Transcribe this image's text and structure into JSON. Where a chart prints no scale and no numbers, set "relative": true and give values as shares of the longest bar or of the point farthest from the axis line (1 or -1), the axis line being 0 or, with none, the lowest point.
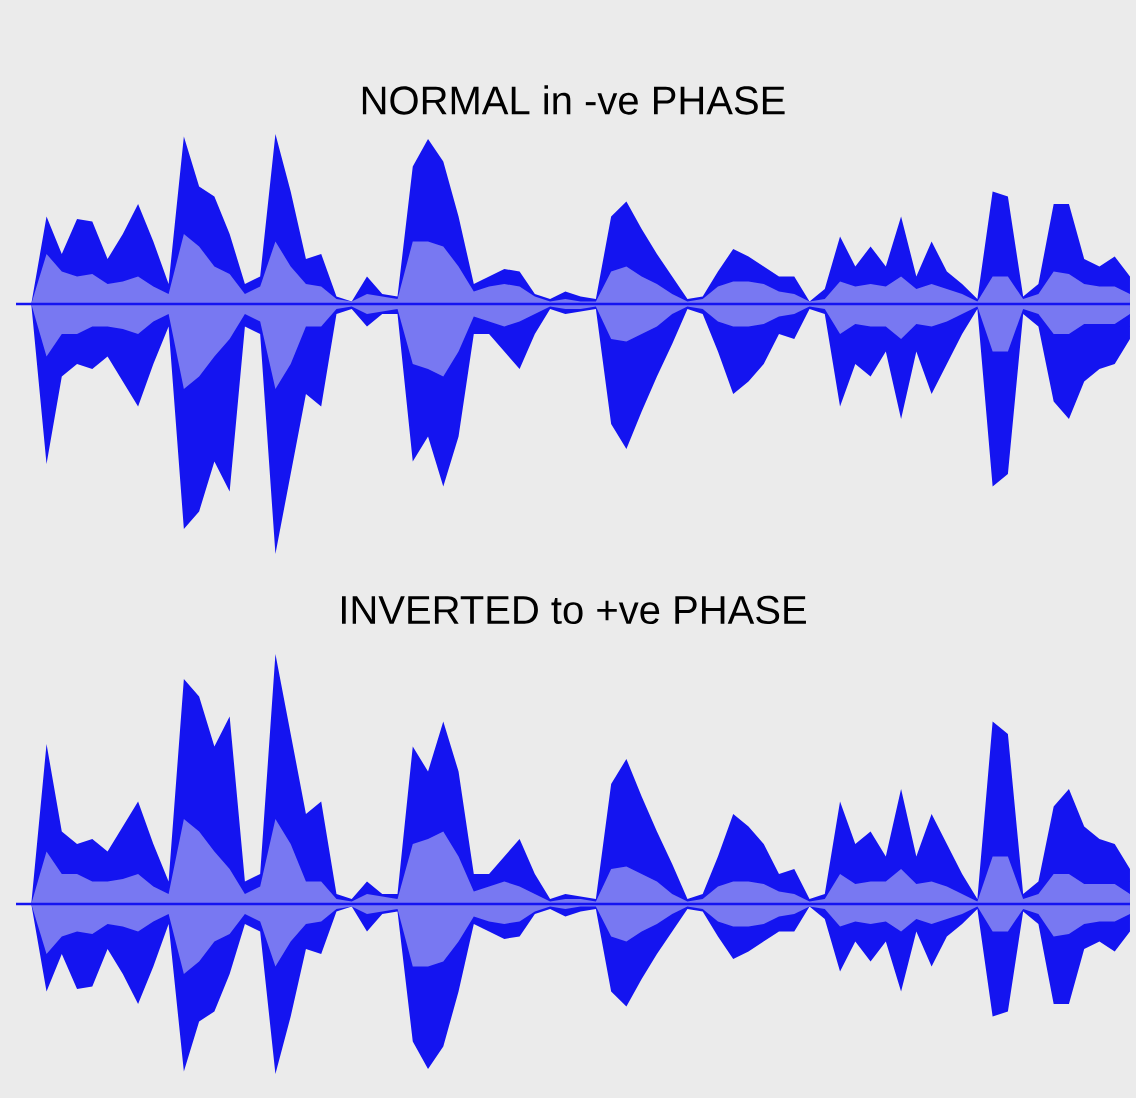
{
  "chart_data": [
    {
      "type": "area",
      "relative": true,
      "title": "NORMAL in -ve PHASE",
      "ref_lines": [
        {
          "axis": "y",
          "value": 0,
          "color": "#1414f0"
        }
      ],
      "categories": [
        null,
        null,
        null,
        null,
        null,
        null,
        null,
        null,
        null,
        null,
        null,
        null,
        null,
        null,
        null,
        null,
        null,
        null,
        null,
        null,
        null,
        null,
        null,
        null,
        null,
        null,
        null,
        null,
        null,
        null,
        null,
        null,
        null,
        null,
        null,
        null,
        null,
        null,
        null,
        null,
        null,
        null,
        null,
        null,
        null,
        null,
        null,
        null,
        null,
        null,
        null,
        null,
        null,
        null,
        null,
        null,
        null,
        null,
        null,
        null,
        null,
        null,
        null,
        null,
        null,
        null,
        null,
        null,
        null,
        null,
        null,
        null,
        null,
        null
      ],
      "series": [
        {
          "color": "#1414f0",
          "values": [
            0,
            0,
            0.35,
            0.2,
            0.34,
            0.33,
            0.18,
            0.28,
            0.4,
            0.25,
            0.08,
            0.67,
            0.47,
            0.43,
            0.28,
            0.08,
            0.11,
            0.68,
            0.45,
            0.18,
            0.2,
            0.03,
            0.01,
            0.11,
            0.04,
            0.03,
            0.55,
            0.66,
            0.57,
            0.35,
            0.08,
            0.11,
            0.14,
            0.13,
            0.04,
            0.02,
            0.05,
            0.03,
            0.02,
            0.35,
            0.41,
            0.3,
            0.2,
            0.11,
            0.02,
            0.03,
            0.13,
            0.22,
            0.19,
            0.15,
            0.11,
            0.11,
            0.01,
            0.06,
            0.27,
            0.15,
            0.23,
            0.15,
            0.35,
            0.11,
            0.25,
            0.13,
            0.08,
            0.02,
            0.45,
            0.43,
            0.03,
            0.08,
            0.4,
            0.4,
            0.18,
            0.15,
            0.19,
            0.11
          ]
        },
        {
          "color": "#1414f0",
          "values": [
            0,
            0,
            -0.64,
            -0.29,
            -0.24,
            -0.26,
            -0.21,
            -0.31,
            -0.41,
            -0.24,
            -0.09,
            -0.9,
            -0.83,
            -0.63,
            -0.75,
            -0.09,
            -0.12,
            -1,
            -0.68,
            -0.36,
            -0.41,
            -0.04,
            -0.02,
            -0.09,
            -0.04,
            -0.04,
            -0.63,
            -0.53,
            -0.73,
            -0.53,
            -0.12,
            -0.12,
            -0.19,
            -0.26,
            -0.12,
            -0.02,
            -0.04,
            -0.03,
            -0.02,
            -0.48,
            -0.58,
            -0.43,
            -0.29,
            -0.16,
            -0.02,
            -0.04,
            -0.19,
            -0.36,
            -0.31,
            -0.24,
            -0.12,
            -0.14,
            -0.02,
            -0.04,
            -0.41,
            -0.24,
            -0.29,
            -0.19,
            -0.46,
            -0.19,
            -0.36,
            -0.24,
            -0.12,
            -0.02,
            -0.73,
            -0.68,
            -0.04,
            -0.09,
            -0.39,
            -0.46,
            -0.31,
            -0.26,
            -0.24,
            -0.14
          ]
        },
        {
          "color": "#7878f2",
          "values": [
            0,
            0,
            0.2,
            0.13,
            0.11,
            0.12,
            0.08,
            0.09,
            0.11,
            0.07,
            0.04,
            0.28,
            0.23,
            0.15,
            0.12,
            0.04,
            0.07,
            0.25,
            0.15,
            0.08,
            0.07,
            0.02,
            0.01,
            0.04,
            0.03,
            0.02,
            0.25,
            0.25,
            0.23,
            0.15,
            0.05,
            0.07,
            0.08,
            0.07,
            0.03,
            0.01,
            0.02,
            0.01,
            0.01,
            0.13,
            0.15,
            0.11,
            0.08,
            0.04,
            0.01,
            0.02,
            0.07,
            0.09,
            0.09,
            0.08,
            0.05,
            0.04,
            0.01,
            0.02,
            0.09,
            0.07,
            0.08,
            0.07,
            0.11,
            0.06,
            0.08,
            0.06,
            0.04,
            0.01,
            0.11,
            0.11,
            0.02,
            0.04,
            0.13,
            0.12,
            0.08,
            0.07,
            0.07,
            0.04
          ]
        },
        {
          "color": "#7878f2",
          "values": [
            0,
            0,
            -0.21,
            -0.12,
            -0.12,
            -0.09,
            -0.09,
            -0.1,
            -0.12,
            -0.07,
            -0.04,
            -0.34,
            -0.29,
            -0.21,
            -0.14,
            -0.04,
            -0.07,
            -0.34,
            -0.24,
            -0.09,
            -0.09,
            -0.02,
            -0.01,
            -0.04,
            -0.03,
            -0.02,
            -0.24,
            -0.26,
            -0.29,
            -0.19,
            -0.05,
            -0.07,
            -0.09,
            -0.07,
            -0.04,
            -0.01,
            -0.02,
            -0.02,
            -0.01,
            -0.14,
            -0.15,
            -0.12,
            -0.09,
            -0.04,
            -0.01,
            -0.02,
            -0.07,
            -0.09,
            -0.09,
            -0.08,
            -0.05,
            -0.04,
            -0.01,
            -0.02,
            -0.12,
            -0.08,
            -0.09,
            -0.09,
            -0.14,
            -0.08,
            -0.09,
            -0.07,
            -0.04,
            -0.01,
            -0.19,
            -0.19,
            -0.02,
            -0.04,
            -0.12,
            -0.12,
            -0.08,
            -0.08,
            -0.08,
            -0.04
          ]
        }
      ]
    },
    {
      "type": "area",
      "relative": true,
      "title": "INVERTED to +ve PHASE",
      "ref_lines": [
        {
          "axis": "y",
          "value": 0,
          "color": "#1414f0"
        }
      ],
      "categories": [
        null,
        null,
        null,
        null,
        null,
        null,
        null,
        null,
        null,
        null,
        null,
        null,
        null,
        null,
        null,
        null,
        null,
        null,
        null,
        null,
        null,
        null,
        null,
        null,
        null,
        null,
        null,
        null,
        null,
        null,
        null,
        null,
        null,
        null,
        null,
        null,
        null,
        null,
        null,
        null,
        null,
        null,
        null,
        null,
        null,
        null,
        null,
        null,
        null,
        null,
        null,
        null,
        null,
        null,
        null,
        null,
        null,
        null,
        null,
        null,
        null,
        null,
        null,
        null,
        null,
        null,
        null,
        null,
        null,
        null,
        null,
        null,
        null,
        null
      ],
      "series": [
        {
          "color": "#1414f0",
          "values": [
            0,
            0,
            0.64,
            0.29,
            0.24,
            0.26,
            0.21,
            0.31,
            0.41,
            0.24,
            0.09,
            0.9,
            0.83,
            0.63,
            0.75,
            0.09,
            0.12,
            1,
            0.68,
            0.36,
            0.41,
            0.04,
            0.02,
            0.09,
            0.04,
            0.04,
            0.63,
            0.53,
            0.73,
            0.53,
            0.12,
            0.12,
            0.19,
            0.26,
            0.12,
            0.02,
            0.04,
            0.03,
            0.02,
            0.48,
            0.58,
            0.43,
            0.29,
            0.16,
            0.02,
            0.04,
            0.19,
            0.36,
            0.31,
            0.24,
            0.12,
            0.14,
            0.02,
            0.04,
            0.41,
            0.24,
            0.29,
            0.19,
            0.46,
            0.19,
            0.36,
            0.24,
            0.12,
            0.02,
            0.73,
            0.68,
            0.04,
            0.09,
            0.39,
            0.46,
            0.31,
            0.26,
            0.24,
            0.14
          ]
        },
        {
          "color": "#1414f0",
          "values": [
            0,
            0,
            -0.35,
            -0.2,
            -0.34,
            -0.33,
            -0.18,
            -0.28,
            -0.4,
            -0.25,
            -0.08,
            -0.67,
            -0.47,
            -0.43,
            -0.28,
            -0.08,
            -0.11,
            -0.68,
            -0.45,
            -0.18,
            -0.2,
            -0.03,
            -0.01,
            -0.11,
            -0.04,
            -0.03,
            -0.55,
            -0.66,
            -0.57,
            -0.35,
            -0.08,
            -0.11,
            -0.14,
            -0.13,
            -0.04,
            -0.02,
            -0.05,
            -0.03,
            -0.02,
            -0.35,
            -0.41,
            -0.3,
            -0.2,
            -0.11,
            -0.02,
            -0.03,
            -0.13,
            -0.22,
            -0.19,
            -0.15,
            -0.11,
            -0.11,
            -0.01,
            -0.06,
            -0.27,
            -0.15,
            -0.23,
            -0.15,
            -0.35,
            -0.11,
            -0.25,
            -0.13,
            -0.08,
            -0.02,
            -0.45,
            -0.43,
            -0.03,
            -0.08,
            -0.4,
            -0.4,
            -0.18,
            -0.15,
            -0.19,
            -0.11
          ]
        },
        {
          "color": "#7878f2",
          "values": [
            0,
            0,
            0.21,
            0.12,
            0.12,
            0.09,
            0.09,
            0.1,
            0.12,
            0.07,
            0.04,
            0.34,
            0.29,
            0.21,
            0.14,
            0.04,
            0.07,
            0.34,
            0.24,
            0.09,
            0.09,
            0.02,
            0.01,
            0.04,
            0.03,
            0.02,
            0.24,
            0.26,
            0.29,
            0.19,
            0.05,
            0.07,
            0.09,
            0.07,
            0.04,
            0.01,
            0.02,
            0.02,
            0.01,
            0.14,
            0.15,
            0.12,
            0.09,
            0.04,
            0.01,
            0.02,
            0.07,
            0.09,
            0.09,
            0.08,
            0.05,
            0.04,
            0.01,
            0.02,
            0.12,
            0.08,
            0.09,
            0.09,
            0.14,
            0.08,
            0.09,
            0.07,
            0.04,
            0.01,
            0.19,
            0.19,
            0.02,
            0.04,
            0.12,
            0.12,
            0.08,
            0.08,
            0.08,
            0.04
          ]
        },
        {
          "color": "#7878f2",
          "values": [
            0,
            0,
            -0.2,
            -0.13,
            -0.11,
            -0.12,
            -0.08,
            -0.09,
            -0.11,
            -0.07,
            -0.04,
            -0.28,
            -0.23,
            -0.15,
            -0.12,
            -0.04,
            -0.07,
            -0.25,
            -0.15,
            -0.08,
            -0.07,
            -0.02,
            -0.01,
            -0.04,
            -0.03,
            -0.02,
            -0.25,
            -0.25,
            -0.23,
            -0.15,
            -0.05,
            -0.07,
            -0.08,
            -0.07,
            -0.03,
            -0.01,
            -0.02,
            -0.01,
            -0.01,
            -0.13,
            -0.15,
            -0.11,
            -0.08,
            -0.04,
            -0.01,
            -0.02,
            -0.07,
            -0.09,
            -0.09,
            -0.08,
            -0.05,
            -0.04,
            -0.01,
            -0.02,
            -0.09,
            -0.07,
            -0.08,
            -0.07,
            -0.11,
            -0.06,
            -0.08,
            -0.06,
            -0.04,
            -0.01,
            -0.11,
            -0.11,
            -0.02,
            -0.04,
            -0.13,
            -0.12,
            -0.08,
            -0.07,
            -0.07,
            -0.04
          ]
        }
      ]
    }
  ]
}
